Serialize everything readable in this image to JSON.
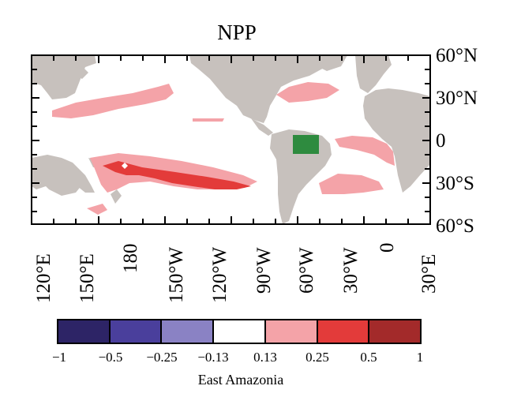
{
  "title": "NPP",
  "map": {
    "lat_labels": [
      "60°N",
      "30°N",
      "0",
      "30°S",
      "60°S"
    ],
    "lon_labels": [
      "120°E",
      "150°E",
      "180",
      "150°W",
      "120°W",
      "90°W",
      "60°W",
      "30°W",
      "0",
      "30°E"
    ],
    "colors": {
      "land": "#c7c1bd",
      "ocean": "#ffffff",
      "region_box": "#2e8b3f"
    }
  },
  "colorbar": {
    "label": "East Amazonia",
    "ticks": [
      "−1",
      "−0.5",
      "−0.25",
      "−0.13",
      "0.13",
      "0.25",
      "0.5",
      "1"
    ],
    "colors": [
      "#2d2466",
      "#4a3f9c",
      "#8a82c4",
      "#ffffff",
      "#f4a3a8",
      "#e33b3a",
      "#a32a2a"
    ]
  }
}
